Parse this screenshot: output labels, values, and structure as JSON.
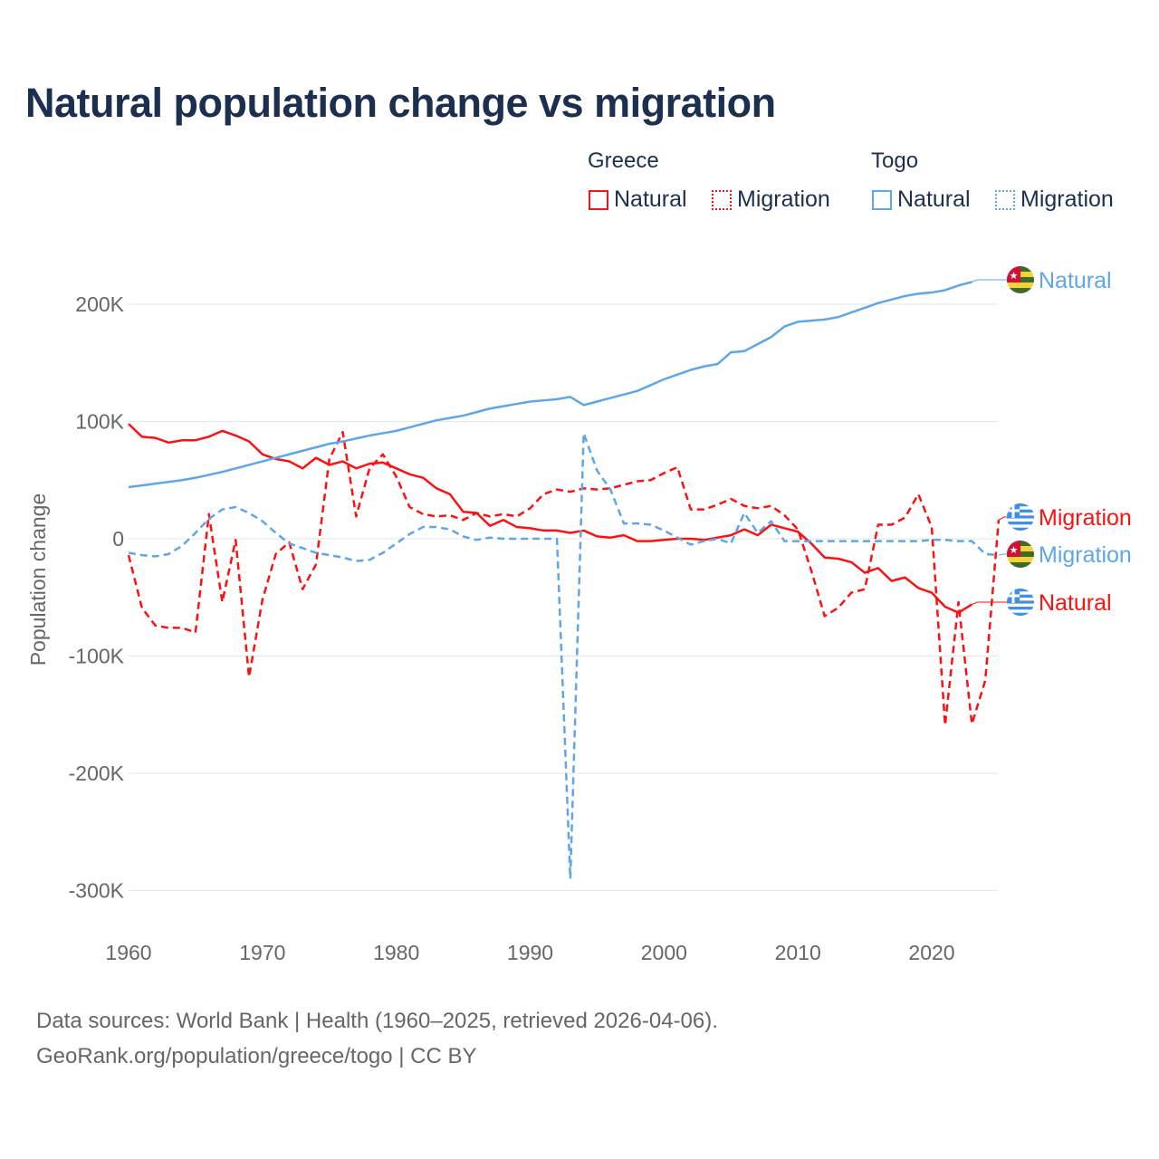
{
  "title": "Natural population change vs migration",
  "legend": {
    "groups": [
      {
        "name": "Greece",
        "items": [
          "Natural",
          "Migration"
        ]
      },
      {
        "name": "Togo",
        "items": [
          "Natural",
          "Migration"
        ]
      }
    ]
  },
  "colors": {
    "greece": "#ff1010",
    "togo": "#5ea6ea",
    "grid": "#e6e6e6",
    "axis_text": "#666666"
  },
  "source": {
    "line1": "Data sources: World Bank | Health (1960–2025, retrieved 2026-04-06).",
    "line2": "GeoRank.org/population/greece/togo | CC BY"
  },
  "chart_data": {
    "type": "line",
    "title": "Natural population change vs migration",
    "xlabel": "",
    "ylabel": "Population change",
    "xlim": [
      1960,
      2025
    ],
    "ylim": [
      -300000,
      220000
    ],
    "grid": true,
    "legend_position": "top-right",
    "x_ticks": [
      1960,
      1970,
      1980,
      1990,
      2000,
      2010,
      2020
    ],
    "x_tick_labels": [
      "1960",
      "1970",
      "1980",
      "1990",
      "2000",
      "2010",
      "2020"
    ],
    "y_ticks": [
      200000,
      100000,
      0,
      -100000,
      -200000,
      -300000
    ],
    "y_tick_labels": [
      "200K",
      "100K",
      "0",
      "-100K",
      "-200K",
      "-300K"
    ],
    "series": [
      {
        "name": "Greece Natural",
        "country": "Greece",
        "label": "Natural",
        "style": "solid",
        "color": "#ff1010",
        "start": 1960,
        "values": [
          98,
          87,
          86,
          82,
          84,
          84,
          87,
          92,
          88,
          83,
          72,
          68,
          66,
          60,
          69,
          63,
          66,
          60,
          64,
          65,
          60,
          55,
          52,
          43,
          38,
          23,
          22,
          11,
          16,
          10,
          9,
          7,
          7,
          5,
          7,
          2,
          1,
          3,
          -2,
          -2,
          -1,
          0,
          0,
          -1,
          1,
          3,
          8,
          3,
          12,
          9,
          6,
          -4,
          -16,
          -17,
          -20,
          -29,
          -25,
          -36,
          -33,
          -42,
          -46,
          -58,
          -63,
          -56
        ]
      },
      {
        "name": "Greece Migration",
        "country": "Greece",
        "label": "Migration",
        "style": "dashed",
        "color": "#ff1010",
        "start": 1960,
        "values": [
          -14,
          -59,
          -74,
          -76,
          -76,
          -80,
          21,
          -54,
          -1,
          -118,
          -52,
          -13,
          -3,
          -43,
          -22,
          68,
          91,
          19,
          60,
          72,
          53,
          27,
          21,
          19,
          20,
          16,
          22,
          19,
          21,
          19,
          26,
          38,
          42,
          40,
          43,
          42,
          43,
          46,
          49,
          50,
          56,
          61,
          25,
          25,
          29,
          34,
          28,
          26,
          28,
          20,
          8,
          -27,
          -66,
          -59,
          -46,
          -43,
          12,
          12,
          18,
          38,
          10,
          -159,
          -54,
          -158,
          -121,
          16
        ]
      },
      {
        "name": "Togo Natural",
        "country": "Togo",
        "label": "Natural",
        "style": "solid",
        "color": "#5ea6ea",
        "start": 1960,
        "values": [
          44,
          45.5,
          47,
          48.5,
          50,
          52,
          54.5,
          57,
          60,
          63,
          66,
          69,
          72,
          75,
          78,
          81,
          83,
          85.5,
          88,
          90,
          92,
          95,
          98,
          101,
          103,
          105,
          108,
          111,
          113,
          115,
          117,
          118,
          119,
          121,
          114,
          117,
          120,
          123,
          126,
          131,
          136,
          140,
          144,
          147,
          149,
          159,
          160,
          166,
          172,
          181,
          185,
          186,
          187,
          189,
          193,
          197,
          201,
          204,
          207,
          209,
          210,
          212,
          216,
          219
        ]
      },
      {
        "name": "Togo Migration",
        "country": "Togo",
        "label": "Migration",
        "style": "dashed",
        "color": "#5ea6ea",
        "start": 1960,
        "values": [
          -12,
          -14,
          -15,
          -13,
          -6,
          5,
          17,
          25,
          27,
          22,
          15,
          5,
          -4,
          -8,
          -12,
          -14,
          -16,
          -19,
          -18,
          -12,
          -4,
          4,
          10,
          10,
          8,
          2,
          -1,
          1,
          0,
          0,
          0,
          0,
          0,
          -290,
          90,
          58,
          42,
          13,
          13,
          12,
          7,
          1,
          -5,
          -2,
          0,
          -4,
          22,
          5,
          15,
          -2,
          -2,
          -2,
          -2,
          -2,
          -2,
          -2,
          -2,
          -2,
          -2,
          -2,
          -1,
          -1,
          -2,
          -2,
          -13,
          -14
        ]
      }
    ],
    "value_unit": "thousands",
    "end_labels": [
      {
        "series": "Togo Natural",
        "text": "Natural",
        "flag": "togo"
      },
      {
        "series": "Greece Migration",
        "text": "Migration",
        "flag": "greece"
      },
      {
        "series": "Togo Migration",
        "text": "Migration",
        "flag": "togo"
      },
      {
        "series": "Greece Natural",
        "text": "Natural",
        "flag": "greece"
      }
    ]
  }
}
